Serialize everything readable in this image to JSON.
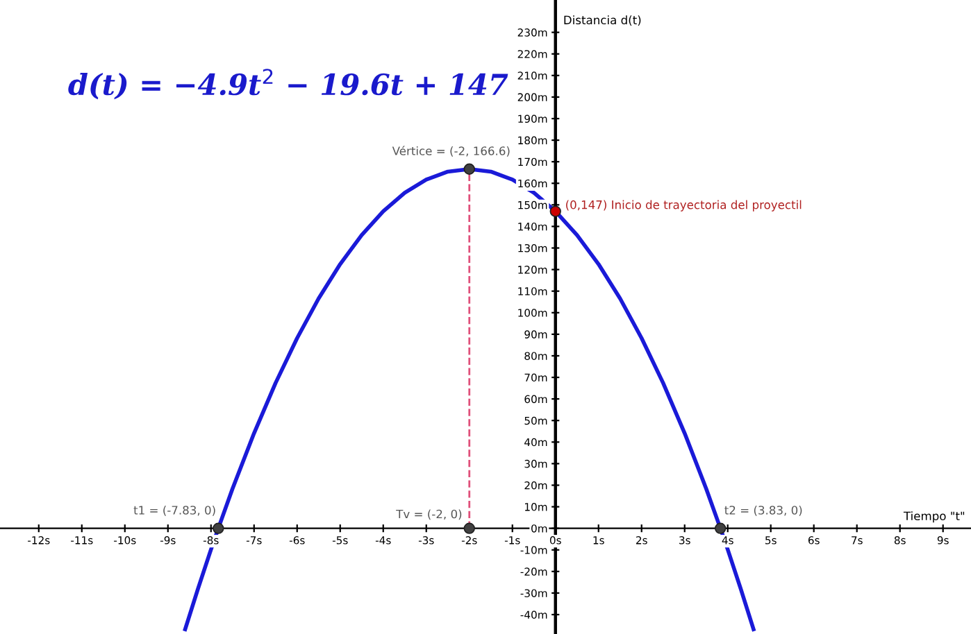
{
  "chart_data": {
    "type": "line",
    "title": "d(t) = −4.9t$^{2}$ − 19.6t + 147",
    "xlabel": "Tiempo \"t\"",
    "ylabel": "Distancia d(t)",
    "xlim": [
      -12.9,
      9.65
    ],
    "ylim": [
      -49,
      245
    ],
    "xticks": [
      {
        "value": -12,
        "label": "-12s"
      },
      {
        "value": -11,
        "label": "-11s"
      },
      {
        "value": -10,
        "label": "-10s"
      },
      {
        "value": -9,
        "label": "-9s"
      },
      {
        "value": -8,
        "label": "-8s"
      },
      {
        "value": -7,
        "label": "-7s"
      },
      {
        "value": -6,
        "label": "-6s"
      },
      {
        "value": -5,
        "label": "-5s"
      },
      {
        "value": -4,
        "label": "-4s"
      },
      {
        "value": -3,
        "label": "-3s"
      },
      {
        "value": -2,
        "label": "-2s"
      },
      {
        "value": -1,
        "label": "-1s"
      },
      {
        "value": 0,
        "label": "0s"
      },
      {
        "value": 1,
        "label": "1s"
      },
      {
        "value": 2,
        "label": "2s"
      },
      {
        "value": 3,
        "label": "3s"
      },
      {
        "value": 4,
        "label": "4s"
      },
      {
        "value": 5,
        "label": "5s"
      },
      {
        "value": 6,
        "label": "6s"
      },
      {
        "value": 7,
        "label": "7s"
      },
      {
        "value": 8,
        "label": "8s"
      },
      {
        "value": 9,
        "label": "9s"
      }
    ],
    "yticks": [
      {
        "value": -40,
        "label": "-40m"
      },
      {
        "value": -30,
        "label": "-30m"
      },
      {
        "value": -20,
        "label": "-20m"
      },
      {
        "value": -10,
        "label": "-10m"
      },
      {
        "value": 0,
        "label": "0m"
      },
      {
        "value": 10,
        "label": "10m"
      },
      {
        "value": 20,
        "label": "20m"
      },
      {
        "value": 30,
        "label": "30m"
      },
      {
        "value": 40,
        "label": "40m"
      },
      {
        "value": 50,
        "label": "50m"
      },
      {
        "value": 60,
        "label": "60m"
      },
      {
        "value": 70,
        "label": "70m"
      },
      {
        "value": 80,
        "label": "80m"
      },
      {
        "value": 90,
        "label": "90m"
      },
      {
        "value": 100,
        "label": "100m"
      },
      {
        "value": 110,
        "label": "110m"
      },
      {
        "value": 120,
        "label": "120m"
      },
      {
        "value": 130,
        "label": "130m"
      },
      {
        "value": 140,
        "label": "140m"
      },
      {
        "value": 150,
        "label": "150m"
      },
      {
        "value": 160,
        "label": "160m"
      },
      {
        "value": 170,
        "label": "170m"
      },
      {
        "value": 180,
        "label": "180m"
      },
      {
        "value": 190,
        "label": "190m"
      },
      {
        "value": 200,
        "label": "200m"
      },
      {
        "value": 210,
        "label": "210m"
      },
      {
        "value": 220,
        "label": "220m"
      },
      {
        "value": 230,
        "label": "230m"
      }
    ],
    "grid": false,
    "series": [
      {
        "color": "#1a1ad8",
        "line_style": "solid",
        "marker": "none",
        "x": [
          -8.6,
          -8.3,
          -8,
          -7.83,
          -7.5,
          -7,
          -6.5,
          -6,
          -5.5,
          -5,
          -4.5,
          -4,
          -3.5,
          -3,
          -2.5,
          -2,
          -1.5,
          -1,
          -0.5,
          0,
          0.5,
          1,
          1.5,
          2,
          2.5,
          3,
          3.5,
          3.83,
          4,
          4.3,
          4.6
        ],
        "values": [
          -46.8,
          -27.9,
          -9.8,
          0,
          18.4,
          44.1,
          67.4,
          88.2,
          106.6,
          122.5,
          136.0,
          147,
          155.6,
          161.7,
          165.4,
          166.6,
          165.4,
          161.7,
          155.6,
          147,
          136.0,
          122.5,
          106.6,
          88.2,
          67.4,
          44.1,
          18.4,
          0,
          -9.8,
          -27.9,
          -46.8
        ]
      },
      {
        "color": "#e0507a",
        "line_style": "dashed",
        "marker": "none",
        "x": [
          -2,
          -2
        ],
        "values": [
          0,
          166.6
        ]
      },
      {
        "type": "scatter",
        "color": "#404040",
        "marker": "circle",
        "x": [
          -7.83,
          -2,
          3.83,
          -2
        ],
        "values": [
          0,
          0,
          0,
          166.6
        ]
      },
      {
        "type": "scatter",
        "color": "#cc0000",
        "marker": "circle",
        "x": [
          0
        ],
        "values": [
          147
        ]
      }
    ],
    "annotations": [
      {
        "text": "t1 = (-7.83, 0)",
        "x": -7.83,
        "y": 0
      },
      {
        "text": "Tv = (-2, 0)",
        "x": -2,
        "y": 0
      },
      {
        "text": "t2 = (3.83, 0)",
        "x": 3.83,
        "y": 0
      },
      {
        "text": "Vértice = (-2, 166.6)",
        "x": -2,
        "y": 166.6
      },
      {
        "text": "(0,147) Inicio de trayectoria del proyectil",
        "x": 0,
        "y": 147
      }
    ]
  }
}
